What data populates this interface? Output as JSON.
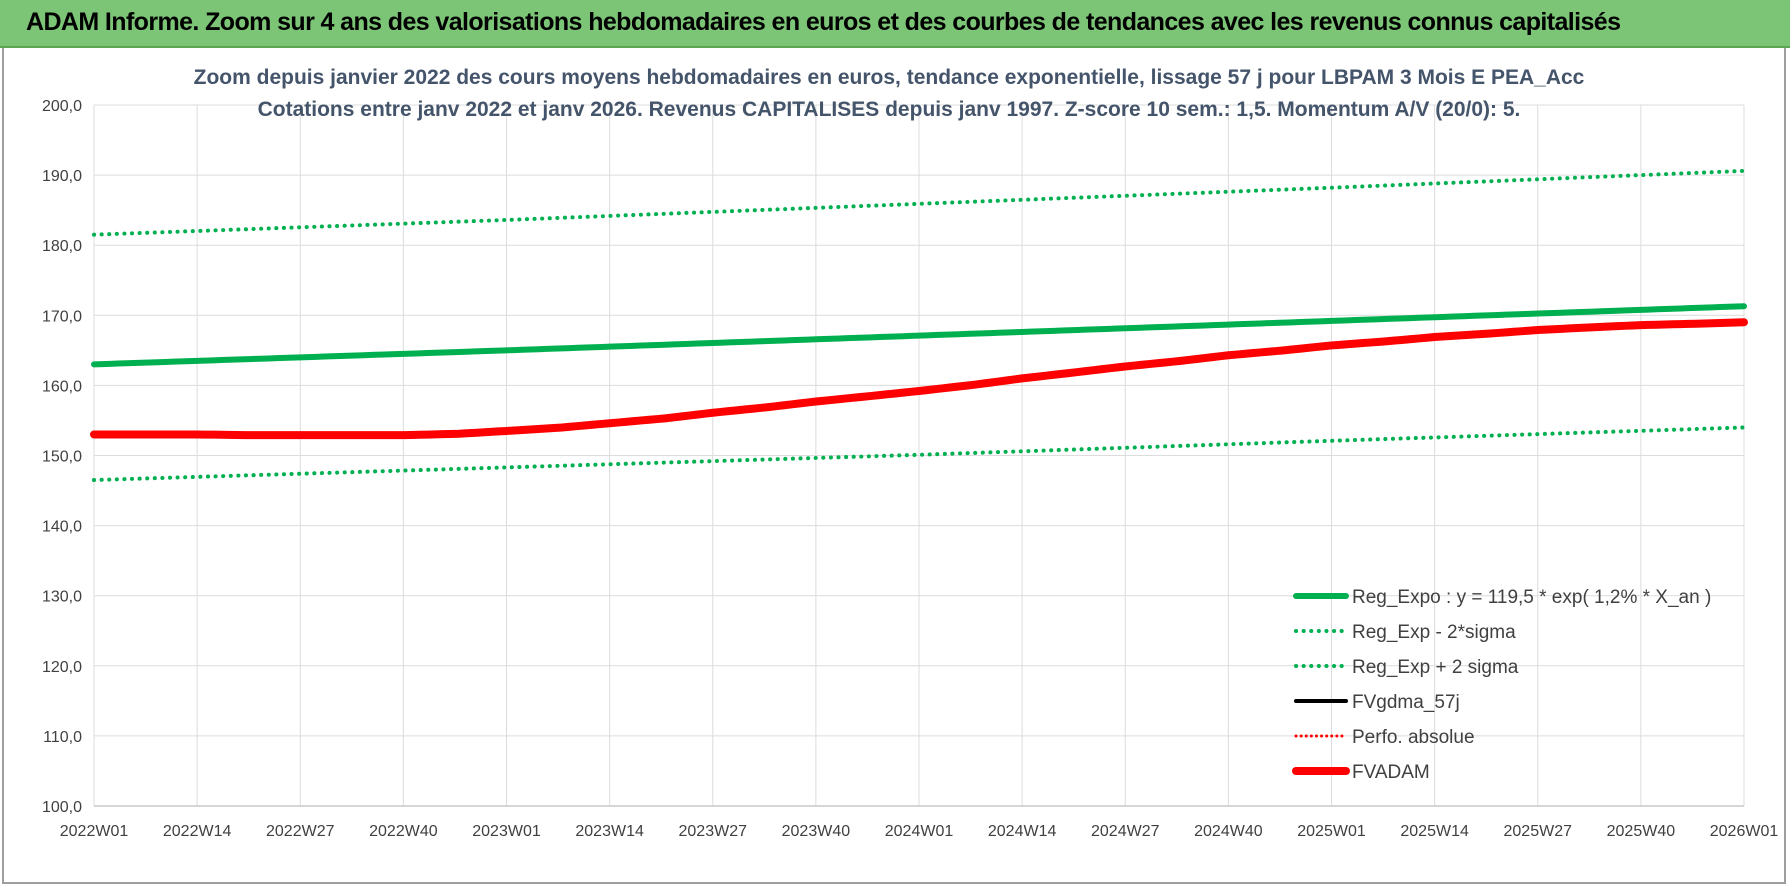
{
  "banner": {
    "title": "ADAM Informe. Zoom sur 4 ans des valorisations hebdomadaires en euros et des courbes de tendances avec les revenus connus capitalisés"
  },
  "colors": {
    "banner_bg": "#7cc576",
    "reg_expo": "#00b050",
    "sigma_bands": "#00b050",
    "fvgdma": "#000000",
    "perfo": "#ff0000",
    "fvadam": "#ff0000",
    "title_text": "#44546a"
  },
  "chart_data": {
    "type": "line",
    "title": [
      "Zoom depuis janvier 2022 des cours moyens hebdomadaires en euros, tendance exponentielle, lissage 57 j pour LBPAM 3 Mois E PEA_Acc",
      "Cotations entre janv 2022 et janv 2026. Revenus CAPITALISES depuis janv 1997. Z-score 10 sem.: 1,5. Momentum A/V (20/0): 5."
    ],
    "xlabel": "",
    "ylabel": "",
    "ylim": [
      100,
      200
    ],
    "yticks": [
      "100,0",
      "110,0",
      "120,0",
      "130,0",
      "140,0",
      "150,0",
      "160,0",
      "170,0",
      "180,0",
      "190,0",
      "200,0"
    ],
    "x_tick_labels": [
      "2022W01",
      "2022W14",
      "2022W27",
      "2022W40",
      "2023W01",
      "2023W14",
      "2023W27",
      "2023W40",
      "2024W01",
      "2024W14",
      "2024W27",
      "2024W40",
      "2025W01",
      "2025W14",
      "2025W27",
      "2025W40",
      "2026W01"
    ],
    "x_range_weeks": [
      0,
      208
    ],
    "grid": true,
    "legend_position": "bottom-right",
    "series": [
      {
        "name": "Reg_Expo : y = 119,5 * exp( 1,2% *  X_an )",
        "style": "solid-thick",
        "x": [
          0,
          52,
          104,
          156,
          208
        ],
        "y": [
          163.0,
          165.0,
          167.1,
          169.2,
          171.3
        ]
      },
      {
        "name": "Reg_Exp - 2*sigma",
        "style": "dotted",
        "x": [
          0,
          52,
          104,
          156,
          208
        ],
        "y": [
          146.5,
          148.3,
          150.1,
          152.1,
          154.0
        ]
      },
      {
        "name": "Reg_Exp + 2 sigma",
        "style": "dotted",
        "x": [
          0,
          52,
          104,
          156,
          208
        ],
        "y": [
          181.5,
          183.6,
          185.9,
          188.2,
          190.6
        ]
      },
      {
        "name": "FVgdma_57j",
        "style": "solid",
        "x": [],
        "y": []
      },
      {
        "name": "Perfo. absolue",
        "style": "dotted",
        "x": [],
        "y": []
      },
      {
        "name": "FVADAM",
        "style": "solid-thick",
        "x": [
          0,
          13,
          20,
          26,
          33,
          39,
          46,
          52,
          59,
          65,
          72,
          78,
          85,
          91,
          98,
          104,
          111,
          117,
          124,
          130,
          137,
          143,
          150,
          156,
          163,
          169,
          176,
          182,
          189,
          195,
          202,
          208
        ],
        "y": [
          153.0,
          153.0,
          152.9,
          152.9,
          152.9,
          152.9,
          153.1,
          153.5,
          154.0,
          154.6,
          155.3,
          156.1,
          156.9,
          157.7,
          158.5,
          159.2,
          160.1,
          161.0,
          161.9,
          162.7,
          163.5,
          164.3,
          165.0,
          165.7,
          166.3,
          166.9,
          167.4,
          167.9,
          168.3,
          168.6,
          168.8,
          169.0
        ]
      }
    ]
  }
}
